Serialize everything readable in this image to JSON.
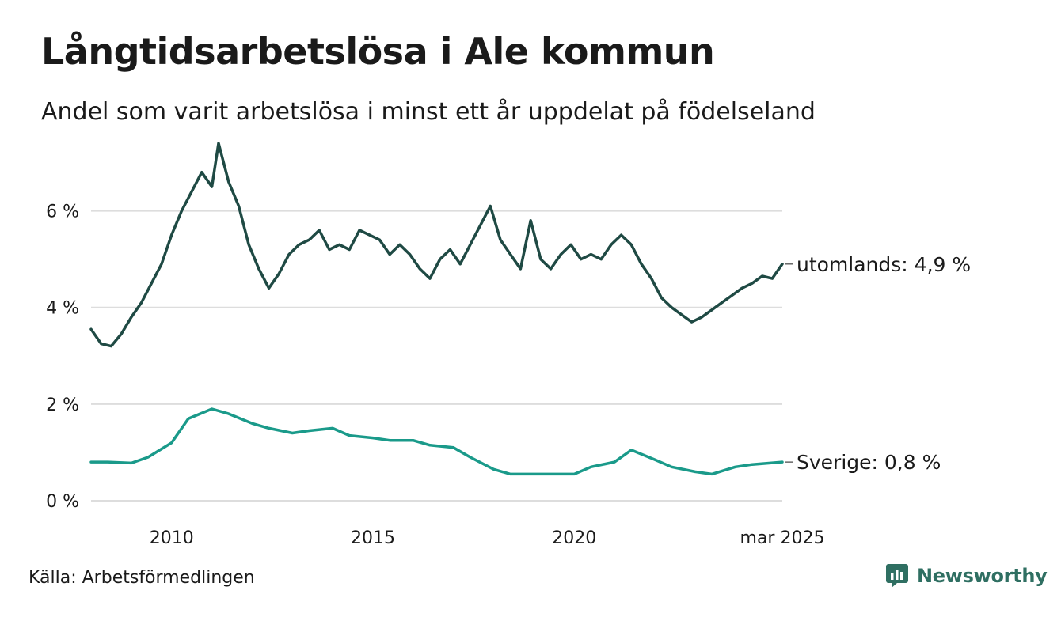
{
  "title": "Långtidsarbetslösa i Ale kommun",
  "subtitle": "Andel som varit arbetslösa i minst ett år uppdelat på födelseland",
  "source": "Källa: Arbetsförmedlingen",
  "brand": "Newsworthy",
  "colors": {
    "utomlands": "#1f4a44",
    "sverige": "#1a9a8a",
    "grid": "#dddddd",
    "brand": "#2f6f62"
  },
  "chart_data": {
    "type": "line",
    "x_start": "2008-01",
    "x_end": "2025-03",
    "ylim": [
      0,
      7.5
    ],
    "y_ticks": [
      {
        "value": 0,
        "label": "0 %"
      },
      {
        "value": 2,
        "label": "2 %"
      },
      {
        "value": 4,
        "label": "4 %"
      },
      {
        "value": 6,
        "label": "6 %"
      }
    ],
    "x_ticks": [
      {
        "value": "2010-01",
        "label": "2010"
      },
      {
        "value": "2015-01",
        "label": "2015"
      },
      {
        "value": "2020-01",
        "label": "2020"
      },
      {
        "value": "2025-03",
        "label": "mar 2025"
      }
    ],
    "series": [
      {
        "name": "utomlands",
        "end_label": "utomlands: 4,9 %",
        "color": "#1f4a44",
        "points": [
          [
            "2008-01",
            3.55
          ],
          [
            "2008-04",
            3.25
          ],
          [
            "2008-07",
            3.2
          ],
          [
            "2008-10",
            3.45
          ],
          [
            "2009-01",
            3.8
          ],
          [
            "2009-04",
            4.1
          ],
          [
            "2009-07",
            4.5
          ],
          [
            "2009-10",
            4.9
          ],
          [
            "2010-01",
            5.5
          ],
          [
            "2010-04",
            6.0
          ],
          [
            "2010-07",
            6.4
          ],
          [
            "2010-10",
            6.8
          ],
          [
            "2011-01",
            6.5
          ],
          [
            "2011-03",
            7.4
          ],
          [
            "2011-06",
            6.6
          ],
          [
            "2011-09",
            6.1
          ],
          [
            "2011-12",
            5.3
          ],
          [
            "2012-03",
            4.8
          ],
          [
            "2012-06",
            4.4
          ],
          [
            "2012-09",
            4.7
          ],
          [
            "2012-12",
            5.1
          ],
          [
            "2013-03",
            5.3
          ],
          [
            "2013-06",
            5.4
          ],
          [
            "2013-09",
            5.6
          ],
          [
            "2013-12",
            5.2
          ],
          [
            "2014-03",
            5.3
          ],
          [
            "2014-06",
            5.2
          ],
          [
            "2014-09",
            5.6
          ],
          [
            "2014-12",
            5.5
          ],
          [
            "2015-03",
            5.4
          ],
          [
            "2015-06",
            5.1
          ],
          [
            "2015-09",
            5.3
          ],
          [
            "2015-12",
            5.1
          ],
          [
            "2016-03",
            4.8
          ],
          [
            "2016-06",
            4.6
          ],
          [
            "2016-09",
            5.0
          ],
          [
            "2016-12",
            5.2
          ],
          [
            "2017-03",
            4.9
          ],
          [
            "2017-06",
            5.3
          ],
          [
            "2017-09",
            5.7
          ],
          [
            "2017-12",
            6.1
          ],
          [
            "2018-03",
            5.4
          ],
          [
            "2018-06",
            5.1
          ],
          [
            "2018-09",
            4.8
          ],
          [
            "2018-12",
            5.8
          ],
          [
            "2019-03",
            5.0
          ],
          [
            "2019-06",
            4.8
          ],
          [
            "2019-09",
            5.1
          ],
          [
            "2019-12",
            5.3
          ],
          [
            "2020-03",
            5.0
          ],
          [
            "2020-06",
            5.1
          ],
          [
            "2020-09",
            5.0
          ],
          [
            "2020-12",
            5.3
          ],
          [
            "2021-03",
            5.5
          ],
          [
            "2021-06",
            5.3
          ],
          [
            "2021-09",
            4.9
          ],
          [
            "2021-12",
            4.6
          ],
          [
            "2022-03",
            4.2
          ],
          [
            "2022-06",
            4.0
          ],
          [
            "2022-09",
            3.85
          ],
          [
            "2022-12",
            3.7
          ],
          [
            "2023-03",
            3.8
          ],
          [
            "2023-06",
            3.95
          ],
          [
            "2023-09",
            4.1
          ],
          [
            "2023-12",
            4.25
          ],
          [
            "2024-03",
            4.4
          ],
          [
            "2024-06",
            4.5
          ],
          [
            "2024-09",
            4.65
          ],
          [
            "2024-12",
            4.6
          ],
          [
            "2025-03",
            4.9
          ]
        ]
      },
      {
        "name": "Sverige",
        "end_label": "Sverige: 0,8 %",
        "color": "#1a9a8a",
        "points": [
          [
            "2008-01",
            0.8
          ],
          [
            "2008-06",
            0.8
          ],
          [
            "2009-01",
            0.78
          ],
          [
            "2009-06",
            0.9
          ],
          [
            "2010-01",
            1.2
          ],
          [
            "2010-06",
            1.7
          ],
          [
            "2011-01",
            1.9
          ],
          [
            "2011-06",
            1.8
          ],
          [
            "2012-01",
            1.6
          ],
          [
            "2012-06",
            1.5
          ],
          [
            "2013-01",
            1.4
          ],
          [
            "2013-06",
            1.45
          ],
          [
            "2014-01",
            1.5
          ],
          [
            "2014-06",
            1.35
          ],
          [
            "2015-01",
            1.3
          ],
          [
            "2015-06",
            1.25
          ],
          [
            "2016-01",
            1.25
          ],
          [
            "2016-06",
            1.15
          ],
          [
            "2017-01",
            1.1
          ],
          [
            "2017-06",
            0.9
          ],
          [
            "2018-01",
            0.65
          ],
          [
            "2018-06",
            0.55
          ],
          [
            "2019-01",
            0.55
          ],
          [
            "2019-06",
            0.55
          ],
          [
            "2020-01",
            0.55
          ],
          [
            "2020-06",
            0.7
          ],
          [
            "2021-01",
            0.8
          ],
          [
            "2021-06",
            1.05
          ],
          [
            "2022-01",
            0.85
          ],
          [
            "2022-06",
            0.7
          ],
          [
            "2023-01",
            0.6
          ],
          [
            "2023-06",
            0.55
          ],
          [
            "2024-01",
            0.7
          ],
          [
            "2024-06",
            0.75
          ],
          [
            "2025-03",
            0.8
          ]
        ]
      }
    ]
  }
}
